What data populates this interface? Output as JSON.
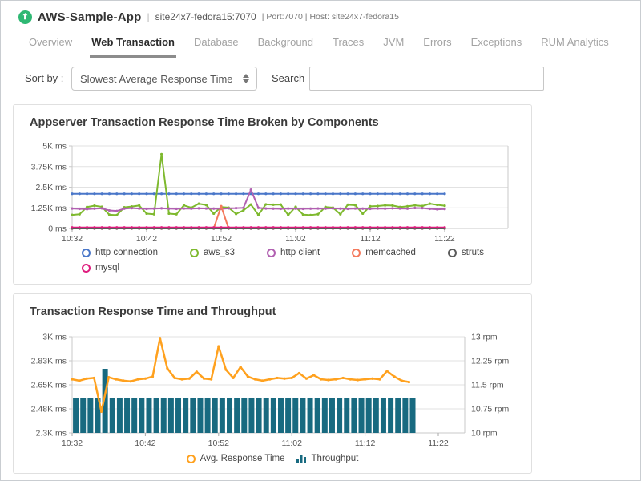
{
  "header": {
    "app_name": "AWS-Sample-App",
    "divider": "|",
    "host_info": "site24x7-fedora15:7070",
    "meta": "| Port:7070 | Host: site24x7-fedora15"
  },
  "tabs": [
    {
      "label": "Overview",
      "active": false
    },
    {
      "label": "Web Transaction",
      "active": true
    },
    {
      "label": "Database",
      "active": false
    },
    {
      "label": "Background",
      "active": false
    },
    {
      "label": "Traces",
      "active": false
    },
    {
      "label": "JVM",
      "active": false
    },
    {
      "label": "Errors",
      "active": false
    },
    {
      "label": "Exceptions",
      "active": false
    },
    {
      "label": "RUM Analytics",
      "active": false
    }
  ],
  "toolbar": {
    "sort_label": "Sort by :",
    "sort_value": "Slowest Average Response Time",
    "search_label": "Search",
    "search_value": ""
  },
  "colors": {
    "brand_green": "#2eb873",
    "active_tab": "#2b2b2b",
    "inactive_tab": "#a3a3a3",
    "grid_line": "#e2e2e2",
    "axis_line": "#c9c9c9"
  },
  "chart_data": [
    {
      "type": "line",
      "title": "Appserver Transaction Response Time Broken by Components",
      "unit": "ms",
      "x_start": "10:32",
      "x_interval_minutes": 1,
      "x_ticks": [
        "10:32",
        "10:42",
        "10:52",
        "11:02",
        "11:12",
        "11:22"
      ],
      "y_ticks": [
        "5K ms",
        "3.75K ms",
        "2.5K ms",
        "1.25K ms",
        "0 ms"
      ],
      "ylim": [
        0,
        5000
      ],
      "grid": "horizontal",
      "legend_position": "bottom",
      "series": [
        {
          "name": "http connection",
          "color": "#4a77c9",
          "values": [
            2100,
            2100,
            2100,
            2100,
            2100,
            2100,
            2100,
            2100,
            2100,
            2100,
            2100,
            2100,
            2100,
            2100,
            2100,
            2100,
            2100,
            2100,
            2100,
            2100,
            2100,
            2100,
            2100,
            2100,
            2100,
            2100,
            2100,
            2100,
            2100,
            2100,
            2100,
            2100,
            2100,
            2100,
            2100,
            2100,
            2100,
            2100,
            2100,
            2100,
            2100,
            2100,
            2100,
            2100,
            2100,
            2100,
            2100,
            2100,
            2100,
            2100,
            2100
          ]
        },
        {
          "name": "aws_s3",
          "color": "#7eb92e",
          "values": [
            820,
            860,
            1300,
            1380,
            1310,
            830,
            810,
            1280,
            1330,
            1390,
            900,
            860,
            4500,
            900,
            860,
            1400,
            1260,
            1500,
            1420,
            900,
            1300,
            1260,
            880,
            1100,
            1450,
            820,
            1460,
            1440,
            1450,
            810,
            1310,
            840,
            810,
            860,
            1300,
            1260,
            860,
            1440,
            1410,
            900,
            1340,
            1360,
            1400,
            1390,
            1300,
            1340,
            1400,
            1360,
            1500,
            1430,
            1380
          ]
        },
        {
          "name": "http client",
          "color": "#b160b1",
          "values": [
            1210,
            1190,
            1170,
            1200,
            1220,
            1090,
            1060,
            1200,
            1230,
            1210,
            1190,
            1200,
            1220,
            1200,
            1190,
            1210,
            1200,
            1220,
            1210,
            1200,
            1190,
            1220,
            1230,
            1250,
            2350,
            1250,
            1210,
            1200,
            1190,
            1210,
            1200,
            1190,
            1200,
            1210,
            1200,
            1220,
            1200,
            1190,
            1210,
            1200,
            1190,
            1210,
            1200,
            1220,
            1210,
            1200,
            1240,
            1230,
            1190,
            1160,
            1180
          ]
        },
        {
          "name": "memcached",
          "color": "#f4795c",
          "values": [
            0,
            0,
            0,
            0,
            0,
            0,
            0,
            0,
            0,
            0,
            0,
            0,
            0,
            0,
            0,
            0,
            0,
            0,
            0,
            0,
            1350,
            0,
            0,
            0,
            0,
            0,
            0,
            0,
            0,
            0,
            0,
            0,
            0,
            0,
            0,
            0,
            0,
            0,
            0,
            0,
            0,
            0,
            0,
            0,
            0,
            0,
            0,
            0,
            0,
            0,
            0
          ]
        },
        {
          "name": "struts",
          "color": "#5b5b5b",
          "values": [
            0,
            0,
            0,
            0,
            0,
            0,
            0,
            0,
            0,
            0,
            0,
            0,
            0,
            0,
            0,
            0,
            0,
            0,
            0,
            0,
            0,
            0,
            0,
            0,
            0,
            0,
            0,
            0,
            0,
            0,
            0,
            0,
            0,
            0,
            0,
            0,
            0,
            0,
            0,
            0,
            0,
            0,
            0,
            0,
            0,
            0,
            0,
            0,
            0,
            0,
            0
          ]
        },
        {
          "name": "mysql",
          "color": "#df1d7e",
          "values": [
            60,
            60,
            60,
            60,
            60,
            60,
            60,
            60,
            60,
            60,
            60,
            60,
            60,
            60,
            60,
            60,
            60,
            60,
            60,
            60,
            60,
            60,
            60,
            60,
            60,
            60,
            60,
            60,
            60,
            60,
            60,
            60,
            60,
            60,
            60,
            60,
            60,
            60,
            60,
            60,
            60,
            60,
            60,
            60,
            60,
            60,
            60,
            60,
            60,
            60,
            60
          ]
        }
      ]
    },
    {
      "type": "line+bar",
      "title": "Transaction Response Time and Throughput",
      "x_start": "10:32",
      "x_interval_minutes": 1,
      "x_ticks": [
        "10:32",
        "10:42",
        "10:52",
        "11:02",
        "11:12",
        "11:22"
      ],
      "left_y_ticks": [
        "3K ms",
        "2.83K ms",
        "2.65K ms",
        "2.48K ms",
        "2.3K ms"
      ],
      "right_y_ticks": [
        "13 rpm",
        "12.25 rpm",
        "11.5 rpm",
        "10.75 rpm",
        "10 rpm"
      ],
      "left_ylim": [
        2300,
        3000
      ],
      "right_ylim": [
        10,
        13
      ],
      "grid": "horizontal",
      "legend_position": "bottom",
      "series": [
        {
          "name": "Avg. Response Time",
          "render": "line",
          "axis": "left",
          "color": "#ffa11e",
          "values": [
            2690,
            2680,
            2695,
            2700,
            2455,
            2705,
            2690,
            2680,
            2675,
            2690,
            2695,
            2710,
            2990,
            2770,
            2700,
            2690,
            2695,
            2745,
            2695,
            2690,
            2930,
            2760,
            2700,
            2780,
            2710,
            2690,
            2680,
            2690,
            2700,
            2695,
            2700,
            2735,
            2695,
            2720,
            2690,
            2685,
            2690,
            2700,
            2690,
            2685,
            2690,
            2695,
            2690,
            2750,
            2710,
            2680,
            2670
          ]
        },
        {
          "name": "Throughput",
          "render": "bar",
          "axis": "right",
          "color": "#186a80",
          "values": [
            11.1,
            11.1,
            11.1,
            11.1,
            12.0,
            11.1,
            11.1,
            11.1,
            11.1,
            11.1,
            11.1,
            11.1,
            11.1,
            11.1,
            11.1,
            11.1,
            11.1,
            11.1,
            11.1,
            11.1,
            11.1,
            11.1,
            11.1,
            11.1,
            11.1,
            11.1,
            11.1,
            11.1,
            11.1,
            11.1,
            11.1,
            11.1,
            11.1,
            11.1,
            11.1,
            11.1,
            11.1,
            11.1,
            11.1,
            11.1,
            11.1,
            11.1,
            11.1,
            11.1,
            11.1,
            11.1,
            11.1
          ]
        }
      ]
    }
  ]
}
